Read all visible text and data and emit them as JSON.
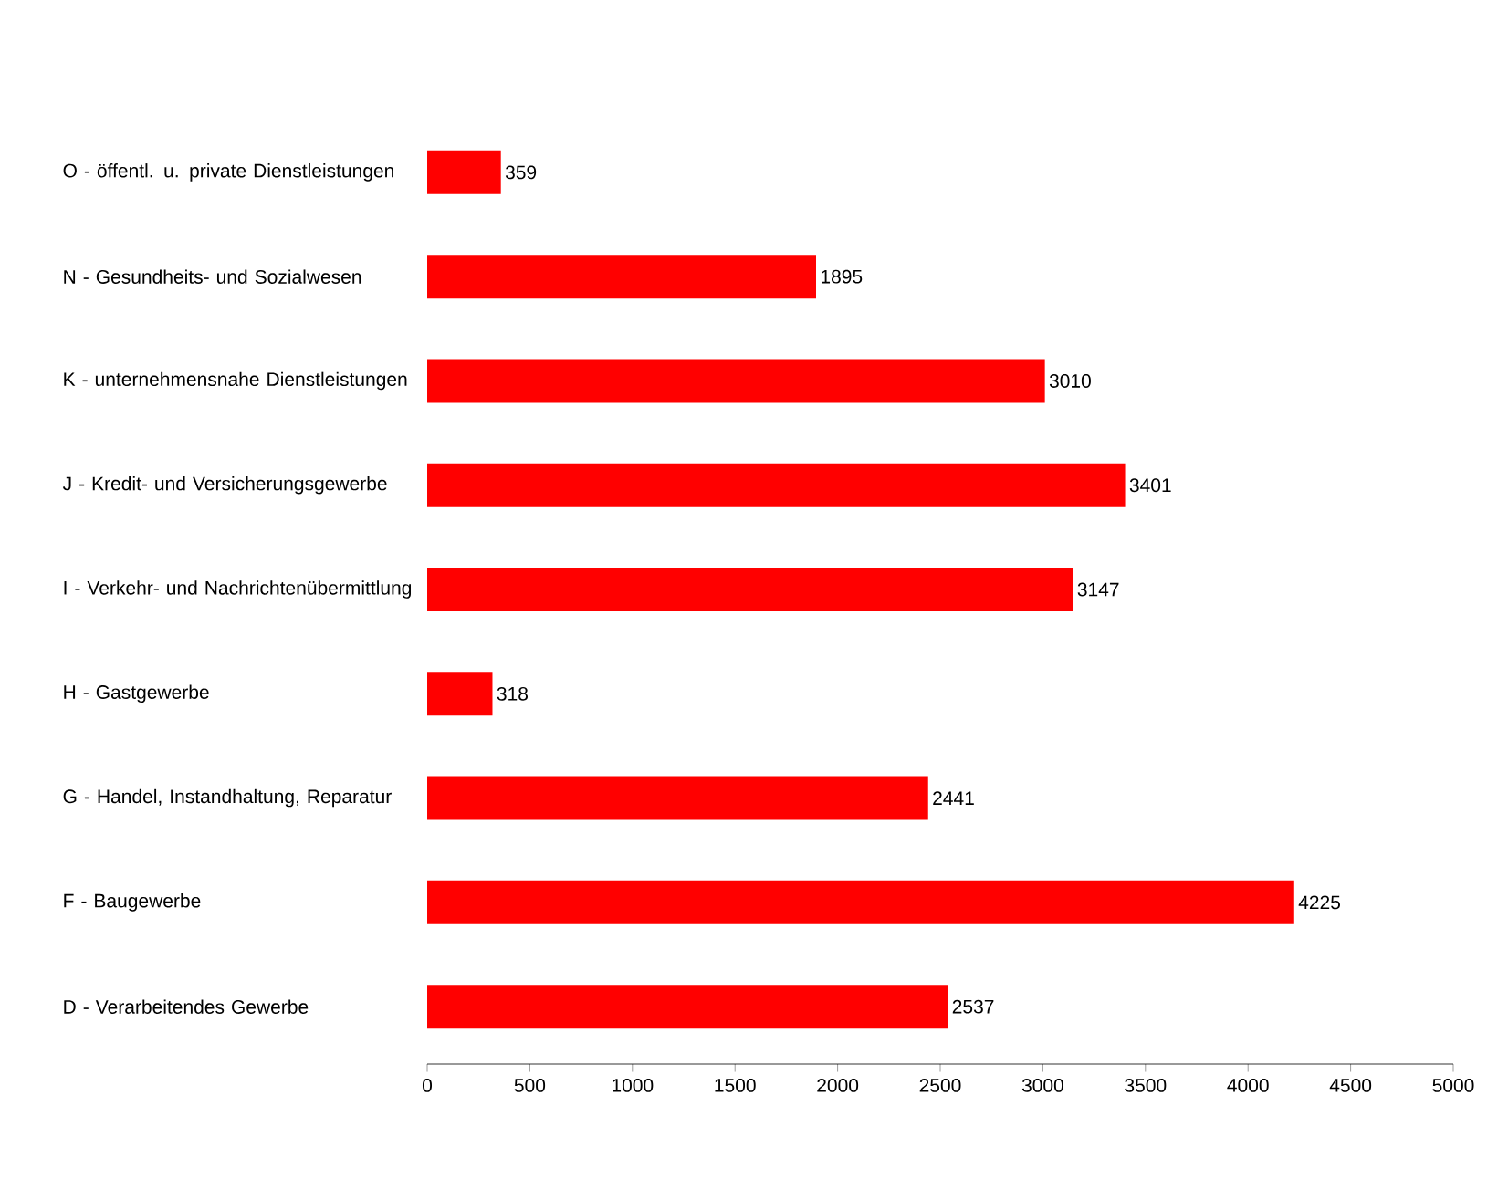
{
  "chart_data": {
    "type": "bar",
    "orientation": "horizontal",
    "categories": [
      "O - öffentl. u. private Dienstleistungen",
      "N - Gesundheits- und Sozialwesen",
      "K - unternehmensnahe Dienstleistungen",
      "J - Kredit- und Versicherungsgewerbe",
      "I - Verkehr- und Nachrichtenübermittlung",
      "H - Gastgewerbe",
      "G - Handel, Instandhaltung, Reparatur",
      "F - Baugewerbe",
      "D - Verarbeitendes Gewerbe"
    ],
    "values": [
      359,
      1895,
      3010,
      3401,
      3147,
      318,
      2441,
      4225,
      2537
    ],
    "color": "#ff0000",
    "xlim": [
      0,
      5000
    ],
    "xticks": [
      0,
      500,
      1000,
      1500,
      2000,
      2500,
      3000,
      3500,
      4000,
      4500,
      5000
    ],
    "data_labels": true,
    "grid": false
  }
}
